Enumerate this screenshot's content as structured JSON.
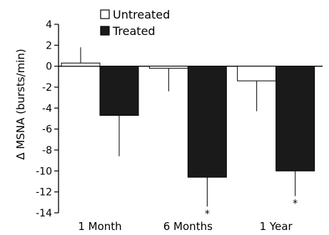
{
  "chart_data": {
    "type": "bar",
    "title": "",
    "xlabel": "",
    "ylabel": "Δ MSNA (bursts/min)",
    "ylim": [
      -14,
      4
    ],
    "yticks": [
      4,
      2,
      0,
      -2,
      -4,
      -6,
      -8,
      -10,
      -12,
      -14
    ],
    "categories": [
      "1 Month",
      "6 Months",
      "1 Year"
    ],
    "series": [
      {
        "name": "Untreated",
        "color": "#ffffff",
        "values": [
          0.3,
          -0.2,
          -1.4
        ],
        "error": [
          1.5,
          2.2,
          2.9
        ],
        "error_direction": [
          1,
          -1,
          -1
        ],
        "significance": [
          "",
          "",
          ""
        ]
      },
      {
        "name": "Treated",
        "color": "#1a1a1a",
        "values": [
          -4.7,
          -10.6,
          -10.0
        ],
        "error": [
          3.9,
          2.8,
          2.4
        ],
        "error_direction": [
          -1,
          -1,
          -1
        ],
        "significance": [
          "",
          "*",
          "*"
        ]
      }
    ],
    "legend_position": "top-left",
    "grid": false
  }
}
